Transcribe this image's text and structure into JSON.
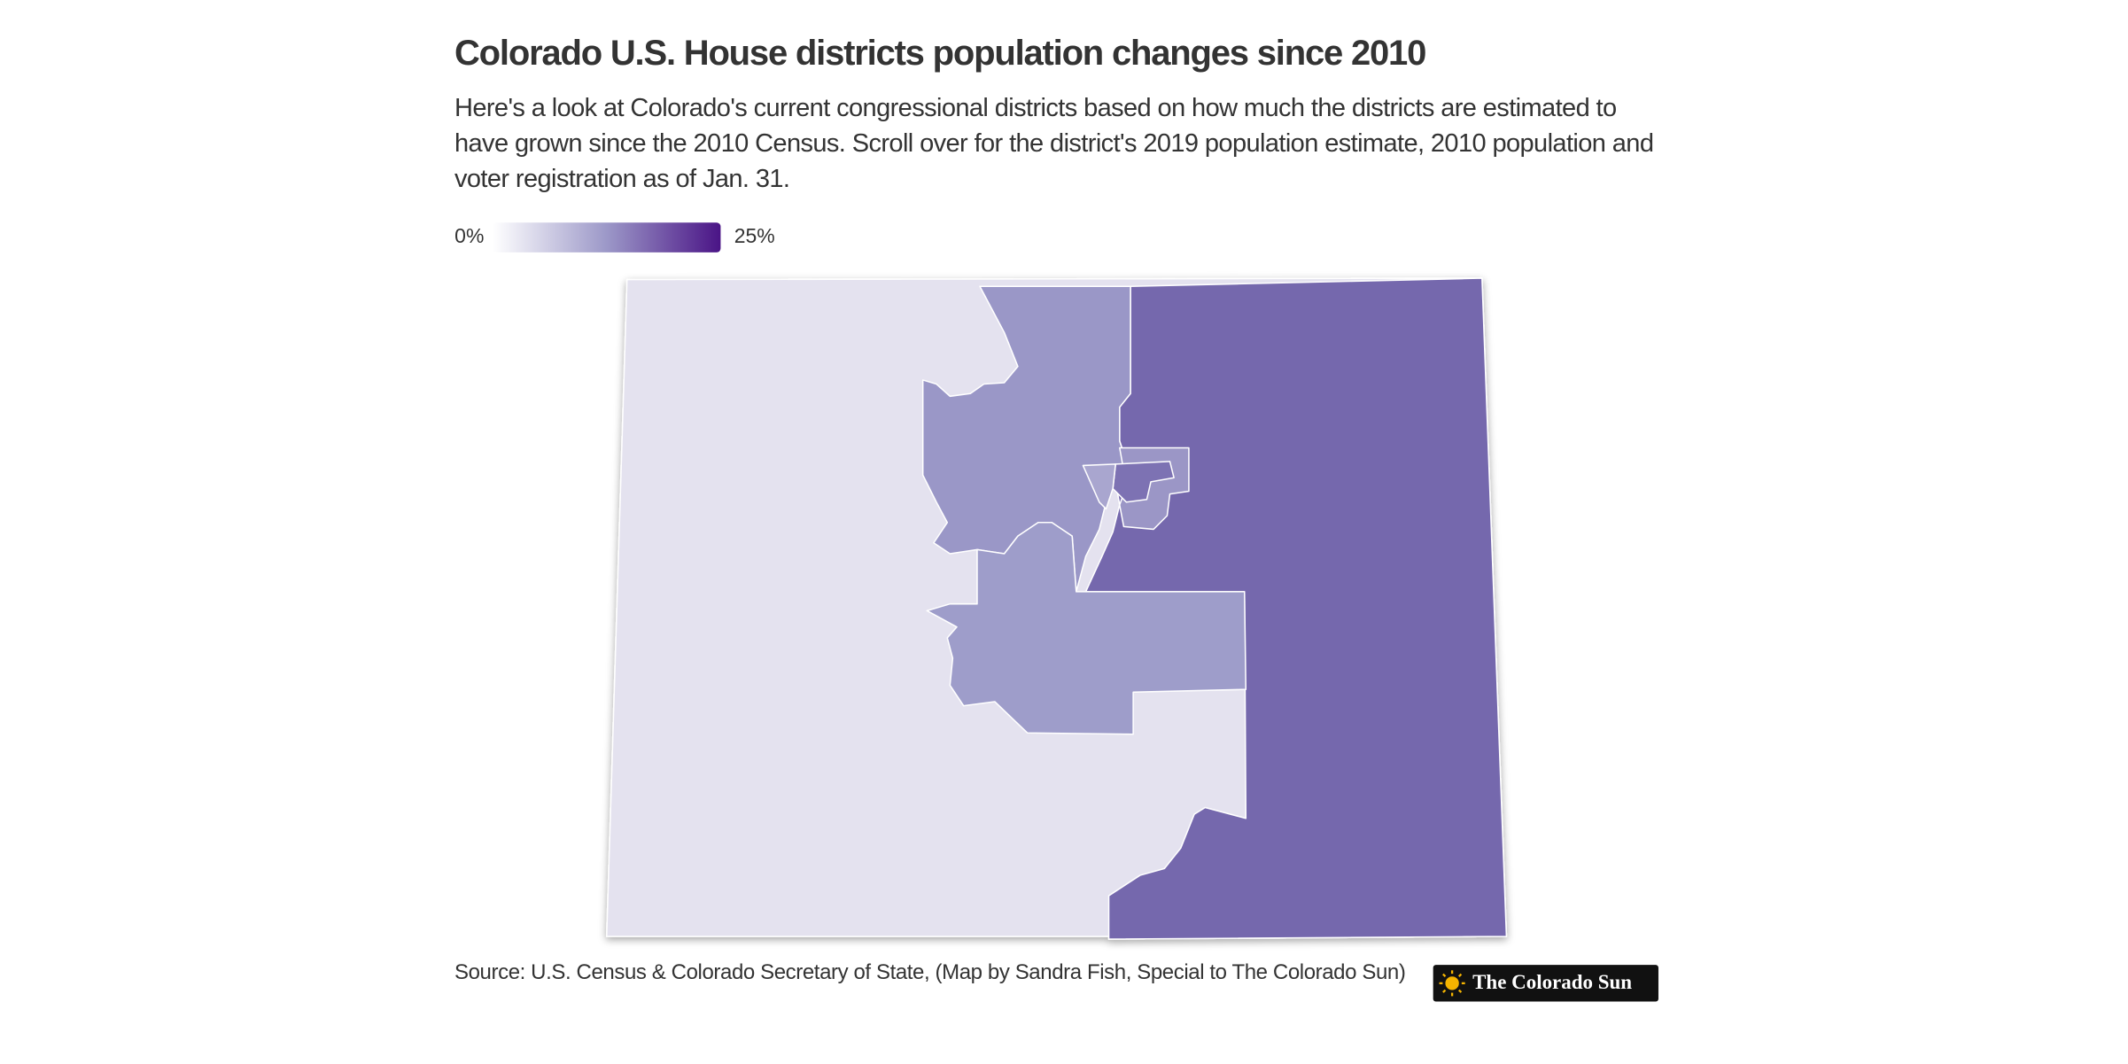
{
  "header": {
    "title": "Colorado U.S. House districts population changes since 2010",
    "subtitle": "Here's a look at Colorado's current congressional districts based on how much the districts are estimated to have grown since the 2010 Census. Scroll over for the district's 2019 population estimate, 2010 population and voter registration as of Jan. 31."
  },
  "legend": {
    "min_label": "0%",
    "max_label": "25%"
  },
  "footer": {
    "source": "Source: U.S. Census & Colorado Secretary of State, (Map by Sandra Fish, Special to The Colorado Sun)",
    "logo": "The Colorado Sun"
  }
}
